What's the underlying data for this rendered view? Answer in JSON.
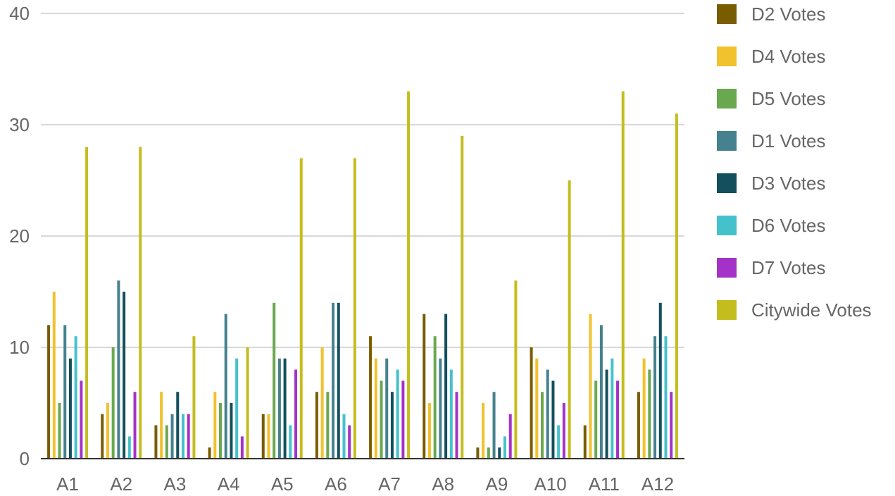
{
  "chart_data": {
    "type": "bar",
    "categories": [
      "A1",
      "A2",
      "A3",
      "A4",
      "A5",
      "A6",
      "A7",
      "A8",
      "A9",
      "A10",
      "A11",
      "A12"
    ],
    "ylim": [
      0,
      40
    ],
    "yticks": [
      0,
      10,
      20,
      30,
      40
    ],
    "grid": true,
    "legend_position": "right",
    "series": [
      {
        "name": "D2 Votes",
        "color": "#7a5c00",
        "values": [
          12,
          4,
          3,
          1,
          4,
          6,
          11,
          13,
          1,
          10,
          3,
          6
        ]
      },
      {
        "name": "D4 Votes",
        "color": "#f2c12e",
        "values": [
          15,
          5,
          6,
          6,
          4,
          10,
          9,
          5,
          5,
          9,
          13,
          9
        ]
      },
      {
        "name": "D5 Votes",
        "color": "#6aa84f",
        "values": [
          5,
          10,
          3,
          5,
          14,
          6,
          7,
          11,
          1,
          6,
          7,
          8
        ]
      },
      {
        "name": "D1 Votes",
        "color": "#45818e",
        "values": [
          12,
          16,
          4,
          13,
          9,
          14,
          9,
          9,
          6,
          8,
          12,
          11
        ]
      },
      {
        "name": "D3 Votes",
        "color": "#134f5c",
        "values": [
          9,
          15,
          6,
          5,
          9,
          14,
          6,
          13,
          1,
          7,
          8,
          14
        ]
      },
      {
        "name": "D6 Votes",
        "color": "#45c1cc",
        "values": [
          11,
          2,
          4,
          9,
          3,
          4,
          8,
          8,
          2,
          3,
          9,
          11
        ]
      },
      {
        "name": "D7 Votes",
        "color": "#a532c8",
        "values": [
          7,
          6,
          4,
          2,
          8,
          3,
          7,
          6,
          4,
          5,
          7,
          6
        ]
      },
      {
        "name": "Citywide Votes",
        "color": "#c4bd1e",
        "values": [
          28,
          28,
          11,
          10,
          27,
          27,
          33,
          29,
          16,
          25,
          33,
          31
        ]
      }
    ]
  }
}
